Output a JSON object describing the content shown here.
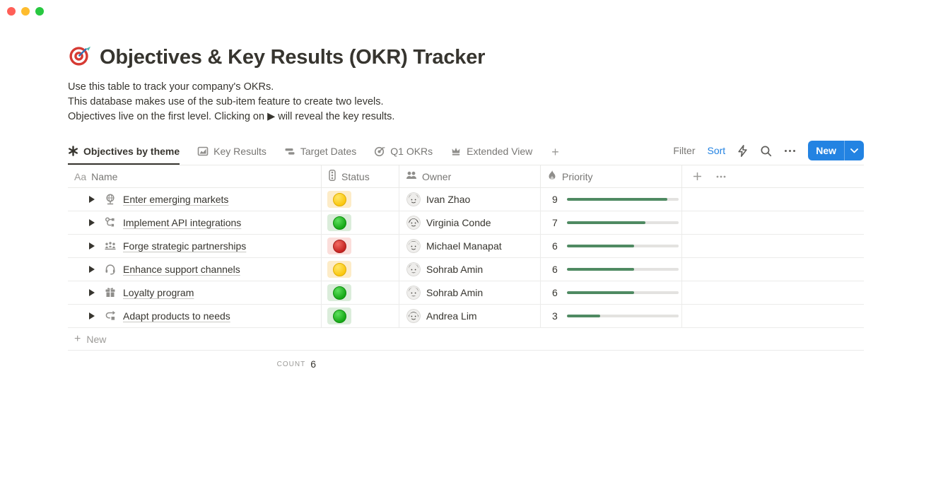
{
  "page": {
    "icon": "target-dart",
    "title": "Objectives & Key Results (OKR) Tracker",
    "description_lines": [
      "Use this table to track your company's OKRs.",
      "This database makes use of the sub-item feature to create two levels.",
      "Objectives live on the first level. Clicking on ▶ will reveal the key results."
    ]
  },
  "views": {
    "tabs": [
      {
        "label": "Objectives by theme",
        "icon": "asterisk-icon",
        "active": true
      },
      {
        "label": "Key Results",
        "icon": "area-chart-icon",
        "active": false
      },
      {
        "label": "Target Dates",
        "icon": "timeline-icon",
        "active": false
      },
      {
        "label": "Q1 OKRs",
        "icon": "target-icon",
        "active": false
      },
      {
        "label": "Extended View",
        "icon": "crown-icon",
        "active": false
      }
    ],
    "add_view_label": "+"
  },
  "controls": {
    "filter_label": "Filter",
    "sort_label": "Sort",
    "new_label": "New"
  },
  "table": {
    "columns": [
      {
        "label": "Name",
        "icon": "text-icon"
      },
      {
        "label": "Status",
        "icon": "traffic-light-icon"
      },
      {
        "label": "Owner",
        "icon": "people-icon"
      },
      {
        "label": "Priority",
        "icon": "flame-icon"
      }
    ],
    "rows": [
      {
        "name": "Enter emerging markets",
        "icon": "desk-globe-icon",
        "status": "yellow",
        "owner": "Ivan Zhao",
        "priority": 9
      },
      {
        "name": "Implement API integrations",
        "icon": "workflow-icon",
        "status": "green",
        "owner": "Virginia Conde",
        "priority": 7
      },
      {
        "name": "Forge strategic partnerships",
        "icon": "meeting-icon",
        "status": "red",
        "owner": "Michael Manapat",
        "priority": 6
      },
      {
        "name": "Enhance support channels",
        "icon": "headset-icon",
        "status": "yellow",
        "owner": "Sohrab Amin",
        "priority": 6
      },
      {
        "name": "Loyalty program",
        "icon": "gift-icon",
        "status": "green",
        "owner": "Sohrab Amin",
        "priority": 6
      },
      {
        "name": "Adapt products to needs",
        "icon": "iterate-icon",
        "status": "green",
        "owner": "Andrea Lim",
        "priority": 3
      }
    ],
    "new_row_label": "New",
    "count_label": "count",
    "count_value": 6
  },
  "colors": {
    "accent_blue": "#2383e2",
    "priority_bar_green": "#4f8a62",
    "status_yellow_bg": "#fdecc8",
    "status_green_bg": "#dbeddb",
    "status_red_bg": "#fbdedb"
  }
}
